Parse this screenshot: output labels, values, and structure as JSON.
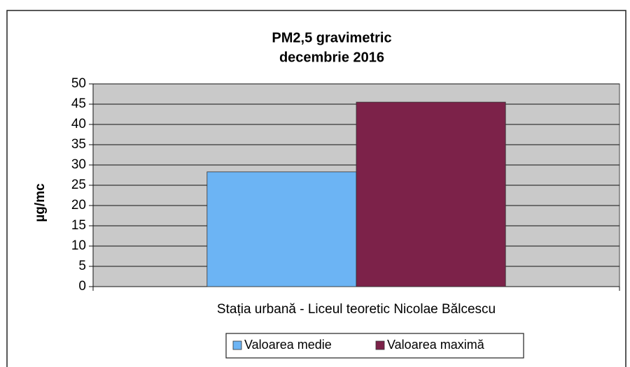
{
  "chart_data": {
    "type": "bar",
    "title": "PM2,5 gravimetric",
    "subtitle": "decembrie 2016",
    "y_label": "µg/mc",
    "categories": [
      "Stația urbană - Liceul teoretic Nicolae Bălcescu"
    ],
    "series": [
      {
        "name": "Valoarea medie",
        "color": "#6cb4f4",
        "values": [
          28.3
        ]
      },
      {
        "name": "Valoarea maximă",
        "color": "#7c2249",
        "values": [
          45.5
        ]
      }
    ],
    "ylim": [
      0,
      50
    ],
    "yticks": [
      0,
      5,
      10,
      15,
      20,
      25,
      30,
      35,
      40,
      45,
      50
    ],
    "grid": true,
    "legend": "bottom"
  }
}
